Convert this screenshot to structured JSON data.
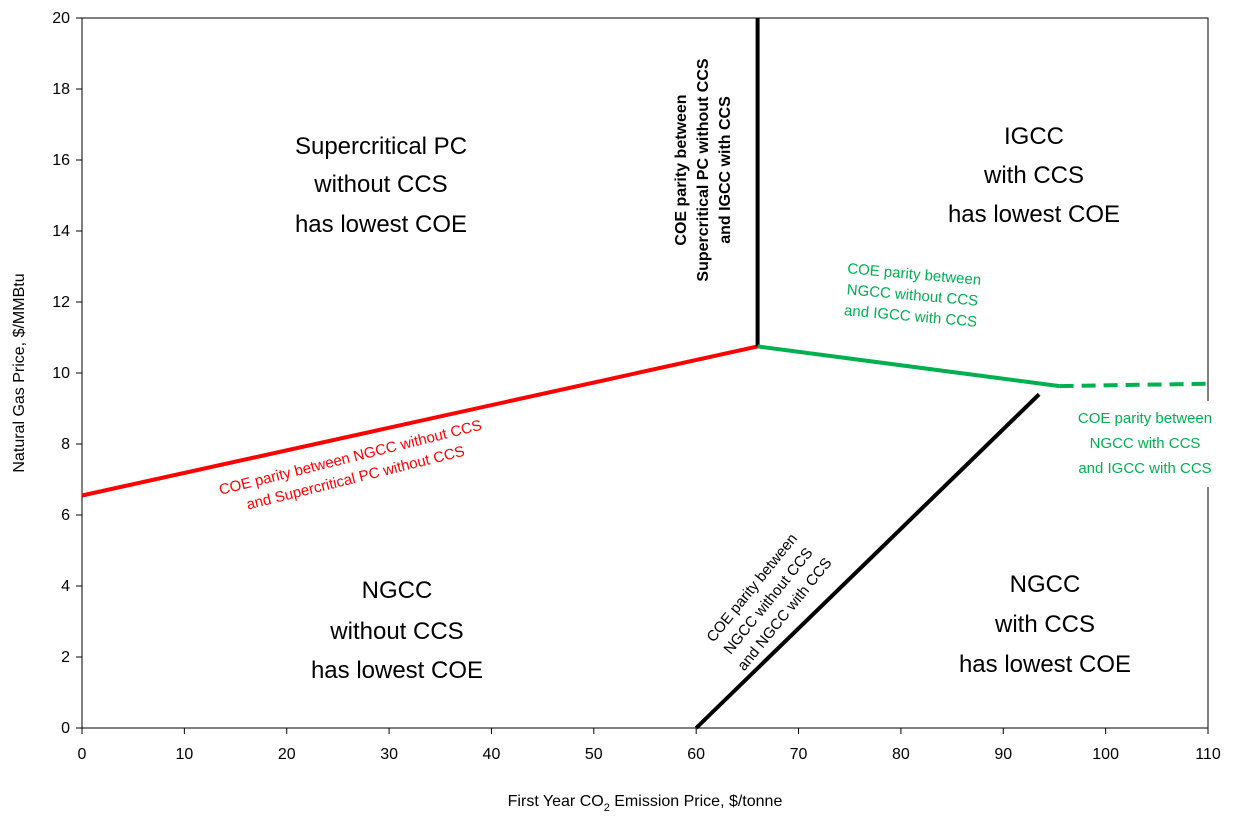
{
  "chart_data": {
    "type": "line",
    "title": "",
    "xlabel_parts": [
      "First Year CO",
      "2",
      " Emission Price, $/tonne"
    ],
    "ylabel": "Natural Gas Price, $/MMBtu",
    "xlim": [
      0,
      110
    ],
    "ylim": [
      0,
      20
    ],
    "x_ticks": [
      0,
      10,
      20,
      30,
      40,
      50,
      60,
      70,
      80,
      90,
      100,
      110
    ],
    "y_ticks": [
      0,
      2,
      4,
      6,
      8,
      10,
      12,
      14,
      16,
      18,
      20
    ],
    "grid": false,
    "series": [
      {
        "color": "#ff0000",
        "style": "solid",
        "points": [
          [
            0,
            6.55
          ],
          [
            66,
            10.75
          ]
        ]
      },
      {
        "color": "#000000",
        "style": "solid",
        "points": [
          [
            66,
            10.75
          ],
          [
            66,
            20
          ]
        ]
      },
      {
        "color": "#00b050",
        "style": "solid",
        "points": [
          [
            66,
            10.75
          ],
          [
            95.5,
            9.63
          ]
        ]
      },
      {
        "color": "#00b050",
        "style": "dashed",
        "points": [
          [
            95.5,
            9.63
          ],
          [
            110,
            9.7
          ]
        ]
      },
      {
        "color": "#000000",
        "style": "solid",
        "points": [
          [
            60,
            0
          ],
          [
            93.5,
            9.4
          ]
        ]
      }
    ],
    "region_labels": [
      {
        "lines": [
          "Supercritical PC",
          "without CCS",
          "has lowest COE"
        ]
      },
      {
        "lines": [
          "IGCC",
          "with CCS",
          "has lowest COE"
        ]
      },
      {
        "lines": [
          "NGCC",
          "without CCS",
          "has lowest COE"
        ]
      },
      {
        "lines": [
          "NGCC",
          "with CCS",
          "has lowest COE"
        ]
      }
    ],
    "annotations": [
      {
        "lines": [
          "COE parity between",
          "Supercritical PC without CCS",
          "and IGCC with CCS"
        ],
        "color": "#000000"
      },
      {
        "lines": [
          "COE parity between",
          "NGCC without CCS",
          "and IGCC with CCS"
        ],
        "color": "#00b050"
      },
      {
        "lines": [
          "COE parity between",
          "NGCC with CCS",
          "and IGCC with CCS"
        ],
        "color": "#00b050"
      },
      {
        "lines": [
          "COE parity between NGCC without CCS",
          "and Supercritical PC without CCS"
        ],
        "color": "#ff0000"
      },
      {
        "lines": [
          "COE parity between",
          "NGCC without CCS",
          "and NGCC with CCS"
        ],
        "color": "#000000"
      }
    ]
  }
}
